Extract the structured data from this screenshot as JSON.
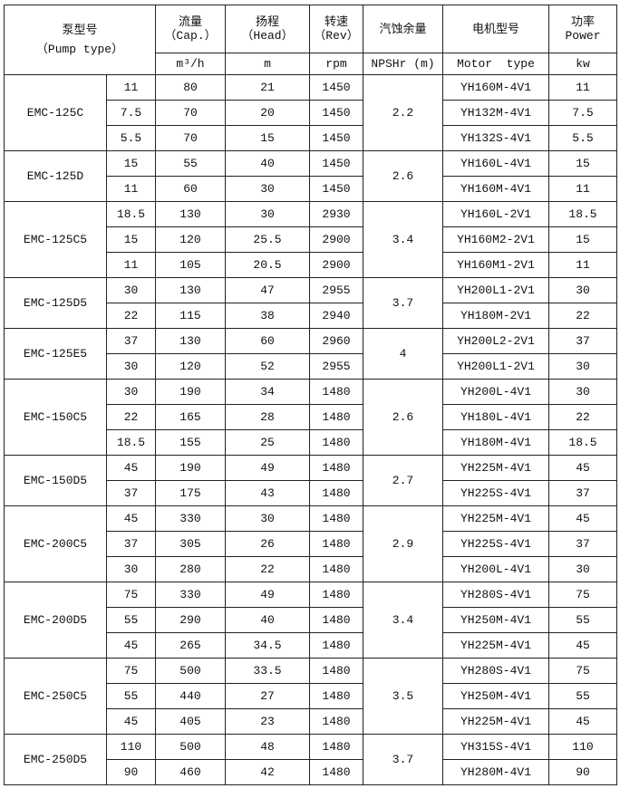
{
  "header": {
    "pump_type": [
      "泵型号",
      "（Pump type）"
    ],
    "cap": [
      "流量",
      "（Cap.）"
    ],
    "head": [
      "扬程",
      "（Head）"
    ],
    "rev": [
      "转速",
      "（Rev）"
    ],
    "npshr": "汽蚀余量",
    "motor": "电机型号",
    "power": [
      "功率",
      "Power"
    ],
    "units": {
      "cap": "m³/h",
      "head": "m",
      "rev": "rpm",
      "npshr": "NPSHr (m)",
      "motor": "Motor  type",
      "power": "kw"
    }
  },
  "groups": [
    {
      "model": "EMC-125C",
      "npshr": "2.2",
      "rows": [
        [
          "11",
          "80",
          "21",
          "1450",
          "YH160M-4V1",
          "11"
        ],
        [
          "7.5",
          "70",
          "20",
          "1450",
          "YH132M-4V1",
          "7.5"
        ],
        [
          "5.5",
          "70",
          "15",
          "1450",
          "YH132S-4V1",
          "5.5"
        ]
      ]
    },
    {
      "model": "EMC-125D",
      "npshr": "2.6",
      "rows": [
        [
          "15",
          "55",
          "40",
          "1450",
          "YH160L-4V1",
          "15"
        ],
        [
          "11",
          "60",
          "30",
          "1450",
          "YH160M-4V1",
          "11"
        ]
      ]
    },
    {
      "model": "EMC-125C5",
      "npshr": "3.4",
      "rows": [
        [
          "18.5",
          "130",
          "30",
          "2930",
          "YH160L-2V1",
          "18.5"
        ],
        [
          "15",
          "120",
          "25.5",
          "2900",
          "YH160M2-2V1",
          "15"
        ],
        [
          "11",
          "105",
          "20.5",
          "2900",
          "YH160M1-2V1",
          "11"
        ]
      ]
    },
    {
      "model": "EMC-125D5",
      "npshr": "3.7",
      "rows": [
        [
          "30",
          "130",
          "47",
          "2955",
          "YH200L1-2V1",
          "30"
        ],
        [
          "22",
          "115",
          "38",
          "2940",
          "YH180M-2V1",
          "22"
        ]
      ]
    },
    {
      "model": "EMC-125E5",
      "npshr": "4",
      "rows": [
        [
          "37",
          "130",
          "60",
          "2960",
          "YH200L2-2V1",
          "37"
        ],
        [
          "30",
          "120",
          "52",
          "2955",
          "YH200L1-2V1",
          "30"
        ]
      ]
    },
    {
      "model": "EMC-150C5",
      "npshr": "2.6",
      "rows": [
        [
          "30",
          "190",
          "34",
          "1480",
          "YH200L-4V1",
          "30"
        ],
        [
          "22",
          "165",
          "28",
          "1480",
          "YH180L-4V1",
          "22"
        ],
        [
          "18.5",
          "155",
          "25",
          "1480",
          "YH180M-4V1",
          "18.5"
        ]
      ]
    },
    {
      "model": "EMC-150D5",
      "npshr": "2.7",
      "rows": [
        [
          "45",
          "190",
          "49",
          "1480",
          "YH225M-4V1",
          "45"
        ],
        [
          "37",
          "175",
          "43",
          "1480",
          "YH225S-4V1",
          "37"
        ]
      ]
    },
    {
      "model": "EMC-200C5",
      "npshr": "2.9",
      "rows": [
        [
          "45",
          "330",
          "30",
          "1480",
          "YH225M-4V1",
          "45"
        ],
        [
          "37",
          "305",
          "26",
          "1480",
          "YH225S-4V1",
          "37"
        ],
        [
          "30",
          "280",
          "22",
          "1480",
          "YH200L-4V1",
          "30"
        ]
      ]
    },
    {
      "model": "EMC-200D5",
      "npshr": "3.4",
      "rows": [
        [
          "75",
          "330",
          "49",
          "1480",
          "YH280S-4V1",
          "75"
        ],
        [
          "55",
          "290",
          "40",
          "1480",
          "YH250M-4V1",
          "55"
        ],
        [
          "45",
          "265",
          "34.5",
          "1480",
          "YH225M-4V1",
          "45"
        ]
      ]
    },
    {
      "model": "EMC-250C5",
      "npshr": "3.5",
      "rows": [
        [
          "75",
          "500",
          "33.5",
          "1480",
          "YH280S-4V1",
          "75"
        ],
        [
          "55",
          "440",
          "27",
          "1480",
          "YH250M-4V1",
          "55"
        ],
        [
          "45",
          "405",
          "23",
          "1480",
          "YH225M-4V1",
          "45"
        ]
      ]
    },
    {
      "model": "EMC-250D5",
      "npshr": "3.7",
      "rows": [
        [
          "110",
          "500",
          "48",
          "1480",
          "YH315S-4V1",
          "110"
        ],
        [
          "90",
          "460",
          "42",
          "1480",
          "YH280M-4V1",
          "90"
        ]
      ]
    }
  ]
}
